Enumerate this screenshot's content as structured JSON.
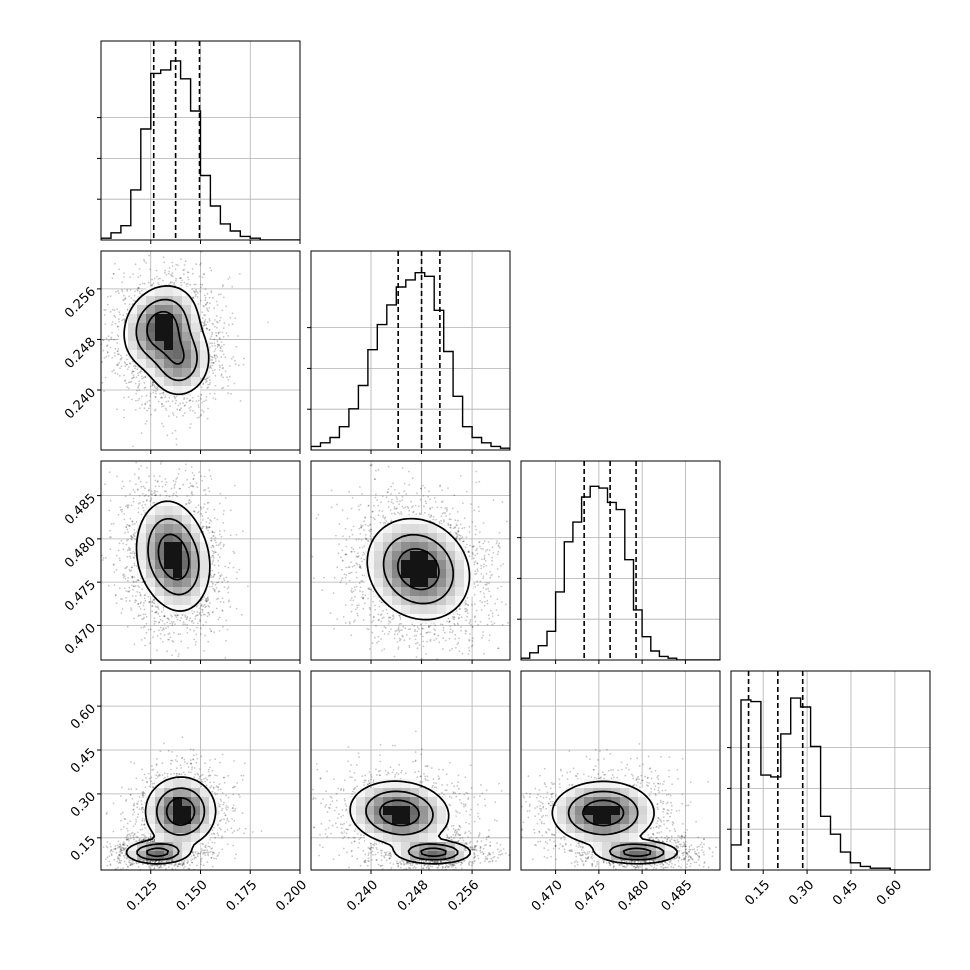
{
  "chart_data": {
    "type": "corner",
    "parameters": 4,
    "axes": [
      {
        "range": [
          0.1,
          0.2
        ],
        "ticks": [
          "0.125",
          "0.150",
          "0.175",
          "0.200"
        ],
        "tick_values": [
          0.125,
          0.15,
          0.175,
          0.2
        ]
      },
      {
        "range": [
          0.2305,
          0.262
        ],
        "ticks": [
          "0.240",
          "0.248",
          "0.256"
        ],
        "tick_values": [
          0.24,
          0.248,
          0.256
        ]
      },
      {
        "range": [
          0.466,
          0.489
        ],
        "ticks": [
          "0.470",
          "0.475",
          "0.480",
          "0.485"
        ],
        "tick_values": [
          0.47,
          0.475,
          0.48,
          0.485
        ]
      },
      {
        "range": [
          0.04,
          0.72
        ],
        "ticks": [
          "0.15",
          "0.30",
          "0.45",
          "0.60"
        ],
        "tick_values": [
          0.15,
          0.3,
          0.45,
          0.6
        ]
      }
    ],
    "histograms": [
      {
        "edges_start": 0.1,
        "bin_width": 0.005,
        "counts": [
          0.01,
          0.04,
          0.08,
          0.28,
          0.62,
          0.93,
          0.95,
          1.0,
          0.9,
          0.72,
          0.36,
          0.19,
          0.09,
          0.05,
          0.02,
          0.01,
          0.0,
          0.0,
          0.0,
          0.0
        ],
        "quantiles": [
          0.1265,
          0.1375,
          0.1495
        ]
      },
      {
        "edges_start": 0.2305,
        "bin_width": 0.0015,
        "counts": [
          0.02,
          0.04,
          0.07,
          0.13,
          0.23,
          0.36,
          0.56,
          0.7,
          0.81,
          0.91,
          0.95,
          0.99,
          0.97,
          0.78,
          0.55,
          0.3,
          0.13,
          0.07,
          0.04,
          0.02,
          0.01
        ],
        "quantiles": [
          0.2443,
          0.248,
          0.2509
        ]
      },
      {
        "edges_start": 0.466,
        "bin_width": 0.001,
        "counts": [
          0.01,
          0.04,
          0.08,
          0.16,
          0.38,
          0.66,
          0.77,
          0.91,
          0.97,
          0.96,
          0.88,
          0.84,
          0.56,
          0.28,
          0.13,
          0.05,
          0.02,
          0.01,
          0.0,
          0.0,
          0.0,
          0.0,
          0.0
        ],
        "quantiles": [
          0.4733,
          0.4763,
          0.4793
        ]
      },
      {
        "edges_start": 0.04,
        "bin_width": 0.034,
        "counts": [
          0.14,
          0.95,
          0.94,
          0.53,
          0.52,
          0.76,
          0.96,
          0.91,
          0.69,
          0.3,
          0.2,
          0.1,
          0.04,
          0.02,
          0.01,
          0.01,
          0.0,
          0.0,
          0.0,
          0.0
        ],
        "quantiles": [
          0.1,
          0.2,
          0.285
        ]
      }
    ],
    "joint": [
      {
        "row": 1,
        "col": 0,
        "modes": [
          {
            "x": [
              0.13,
              0.25
            ],
            "sx": 0.009,
            "sy": 0.0035,
            "w": 1.0,
            "rot": -0.5
          },
          {
            "x": [
              0.14,
              0.2445
            ],
            "sx": 0.008,
            "sy": 0.003,
            "w": 0.7,
            "rot": -0.2
          }
        ]
      },
      {
        "row": 2,
        "col": 0,
        "modes": [
          {
            "x": [
              0.133,
              0.479
            ],
            "sx": 0.0085,
            "sy": 0.003,
            "w": 1.0,
            "rot": 0.0
          },
          {
            "x": [
              0.141,
              0.4765
            ],
            "sx": 0.008,
            "sy": 0.0028,
            "w": 0.8,
            "rot": 0.0
          }
        ]
      },
      {
        "row": 2,
        "col": 1,
        "modes": [
          {
            "x": [
              0.2475,
              0.4765
            ],
            "sx": 0.0038,
            "sy": 0.0032,
            "w": 1.0,
            "rot": 0.83
          }
        ]
      },
      {
        "row": 3,
        "col": 0,
        "modes": [
          {
            "x": [
              0.14,
              0.24
            ],
            "sx": 0.009,
            "sy": 0.06,
            "w": 1.0,
            "rot": 0.2
          },
          {
            "x": [
              0.128,
              0.1
            ],
            "sx": 0.008,
            "sy": 0.02,
            "w": 0.9,
            "rot": 0.0
          }
        ]
      },
      {
        "row": 3,
        "col": 1,
        "modes": [
          {
            "x": [
              0.2445,
              0.235
            ],
            "sx": 0.004,
            "sy": 0.055,
            "w": 1.0,
            "rot": -0.1
          },
          {
            "x": [
              0.25,
              0.1
            ],
            "sx": 0.003,
            "sy": 0.02,
            "w": 0.9,
            "rot": 0.0
          }
        ]
      },
      {
        "row": 3,
        "col": 2,
        "modes": [
          {
            "x": [
              0.4755,
              0.235
            ],
            "sx": 0.003,
            "sy": 0.055,
            "w": 1.0,
            "rot": 0.0
          },
          {
            "x": [
              0.4795,
              0.1
            ],
            "sx": 0.0024,
            "sy": 0.02,
            "w": 0.9,
            "rot": 0.0
          }
        ]
      }
    ]
  }
}
